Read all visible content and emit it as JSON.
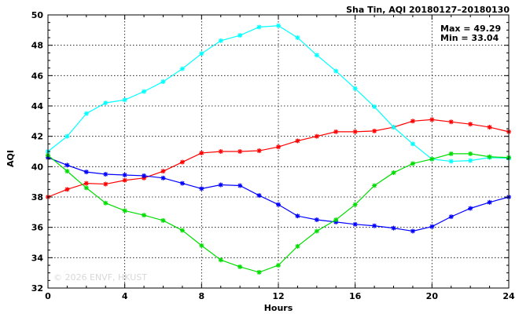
{
  "chart_data": {
    "type": "line",
    "title": "Sha Tin, AQI 20180127–20180130",
    "stats": {
      "max_label": "Max = 49.29",
      "min_label": "Min = 33.04"
    },
    "xlabel": "Hours",
    "ylabel": "AQI",
    "xlim": [
      0,
      24
    ],
    "ylim": [
      32,
      50
    ],
    "xticks": [
      0,
      4,
      8,
      12,
      16,
      20,
      24
    ],
    "yticks": [
      32,
      34,
      36,
      38,
      40,
      42,
      44,
      46,
      48,
      50
    ],
    "grid": true,
    "legend": "none",
    "watermark": "© 2026  ENVF, HKUST",
    "x": [
      0,
      1,
      2,
      3,
      4,
      5,
      6,
      7,
      8,
      9,
      10,
      11,
      12,
      13,
      14,
      15,
      16,
      17,
      18,
      19,
      20,
      21,
      22,
      23,
      24
    ],
    "series": [
      {
        "color": "#ff0000",
        "values": [
          38.0,
          38.5,
          38.9,
          38.85,
          39.1,
          39.25,
          39.7,
          40.3,
          40.9,
          41.0,
          41.0,
          41.05,
          41.3,
          41.7,
          42.0,
          42.3,
          42.3,
          42.35,
          42.6,
          43.0,
          43.1,
          42.95,
          42.8,
          42.6,
          42.3
        ]
      },
      {
        "color": "#00ffff",
        "values": [
          41.0,
          42.0,
          43.5,
          44.2,
          44.4,
          44.95,
          45.6,
          46.45,
          47.45,
          48.3,
          48.65,
          49.2,
          49.29,
          48.5,
          47.35,
          46.3,
          45.15,
          43.95,
          42.6,
          41.5,
          40.5,
          40.35,
          40.4,
          40.6,
          40.55
        ]
      },
      {
        "color": "#0000ff",
        "values": [
          40.6,
          40.1,
          39.65,
          39.5,
          39.45,
          39.4,
          39.25,
          38.9,
          38.55,
          38.8,
          38.75,
          38.1,
          37.5,
          36.75,
          36.5,
          36.35,
          36.2,
          36.1,
          35.95,
          35.75,
          36.05,
          36.7,
          37.25,
          37.65,
          38.0
        ]
      },
      {
        "color": "#00dd00",
        "values": [
          40.75,
          39.7,
          38.6,
          37.6,
          37.1,
          36.8,
          36.45,
          35.8,
          34.8,
          33.85,
          33.4,
          33.04,
          33.5,
          34.75,
          35.75,
          36.5,
          37.5,
          38.75,
          39.6,
          40.2,
          40.5,
          40.85,
          40.85,
          40.65,
          40.6
        ]
      }
    ]
  }
}
